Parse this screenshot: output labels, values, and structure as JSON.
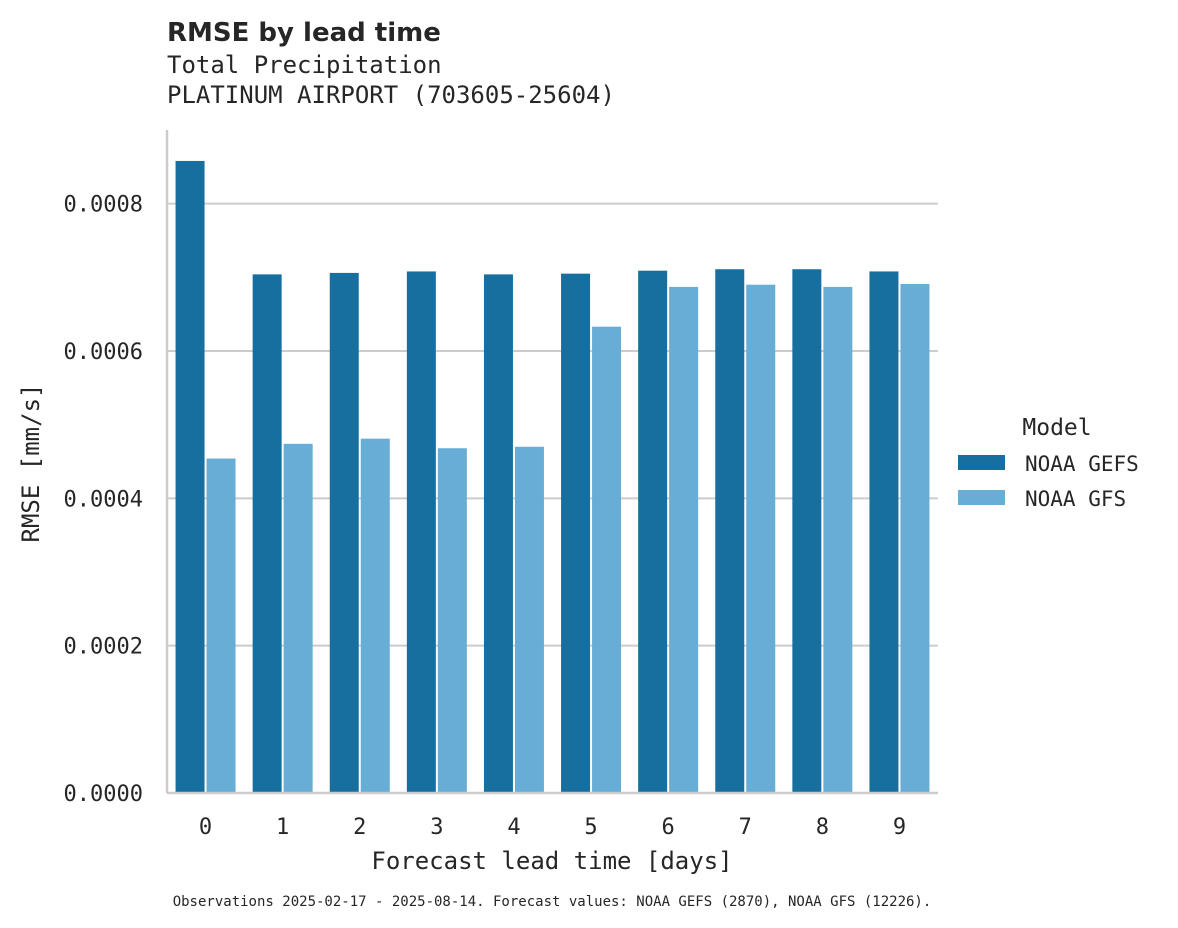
{
  "chart_data": {
    "type": "bar",
    "title": "RMSE by lead time",
    "subtitle_lines": [
      "Total Precipitation",
      "PLATINUM AIRPORT (703605-25604)"
    ],
    "xlabel": "Forecast lead time [days]",
    "ylabel": "RMSE [mm/s]",
    "categories": [
      "0",
      "1",
      "2",
      "3",
      "4",
      "5",
      "6",
      "7",
      "8",
      "9"
    ],
    "ylim": [
      0,
      0.0009
    ],
    "yticks": [
      0,
      0.0002,
      0.0004,
      0.0006,
      0.0008
    ],
    "ytick_labels": [
      "0.0000",
      "0.0002",
      "0.0004",
      "0.0006",
      "0.0008"
    ],
    "grid": "horizontal",
    "legend": {
      "title": "Model",
      "placement": "right"
    },
    "series": [
      {
        "name": "NOAA GEFS",
        "color": "#176fa0",
        "values": [
          0.000858,
          0.000704,
          0.000706,
          0.000708,
          0.000704,
          0.000705,
          0.000709,
          0.000711,
          0.000711,
          0.000708
        ]
      },
      {
        "name": "NOAA GFS",
        "color": "#67add6",
        "values": [
          0.000454,
          0.000474,
          0.000481,
          0.000468,
          0.00047,
          0.000633,
          0.000687,
          0.00069,
          0.000687,
          0.000691
        ]
      }
    ],
    "footnote": "Observations 2025-02-17 - 2025-08-14. Forecast values: NOAA GEFS (2870), NOAA GFS (12226)."
  }
}
